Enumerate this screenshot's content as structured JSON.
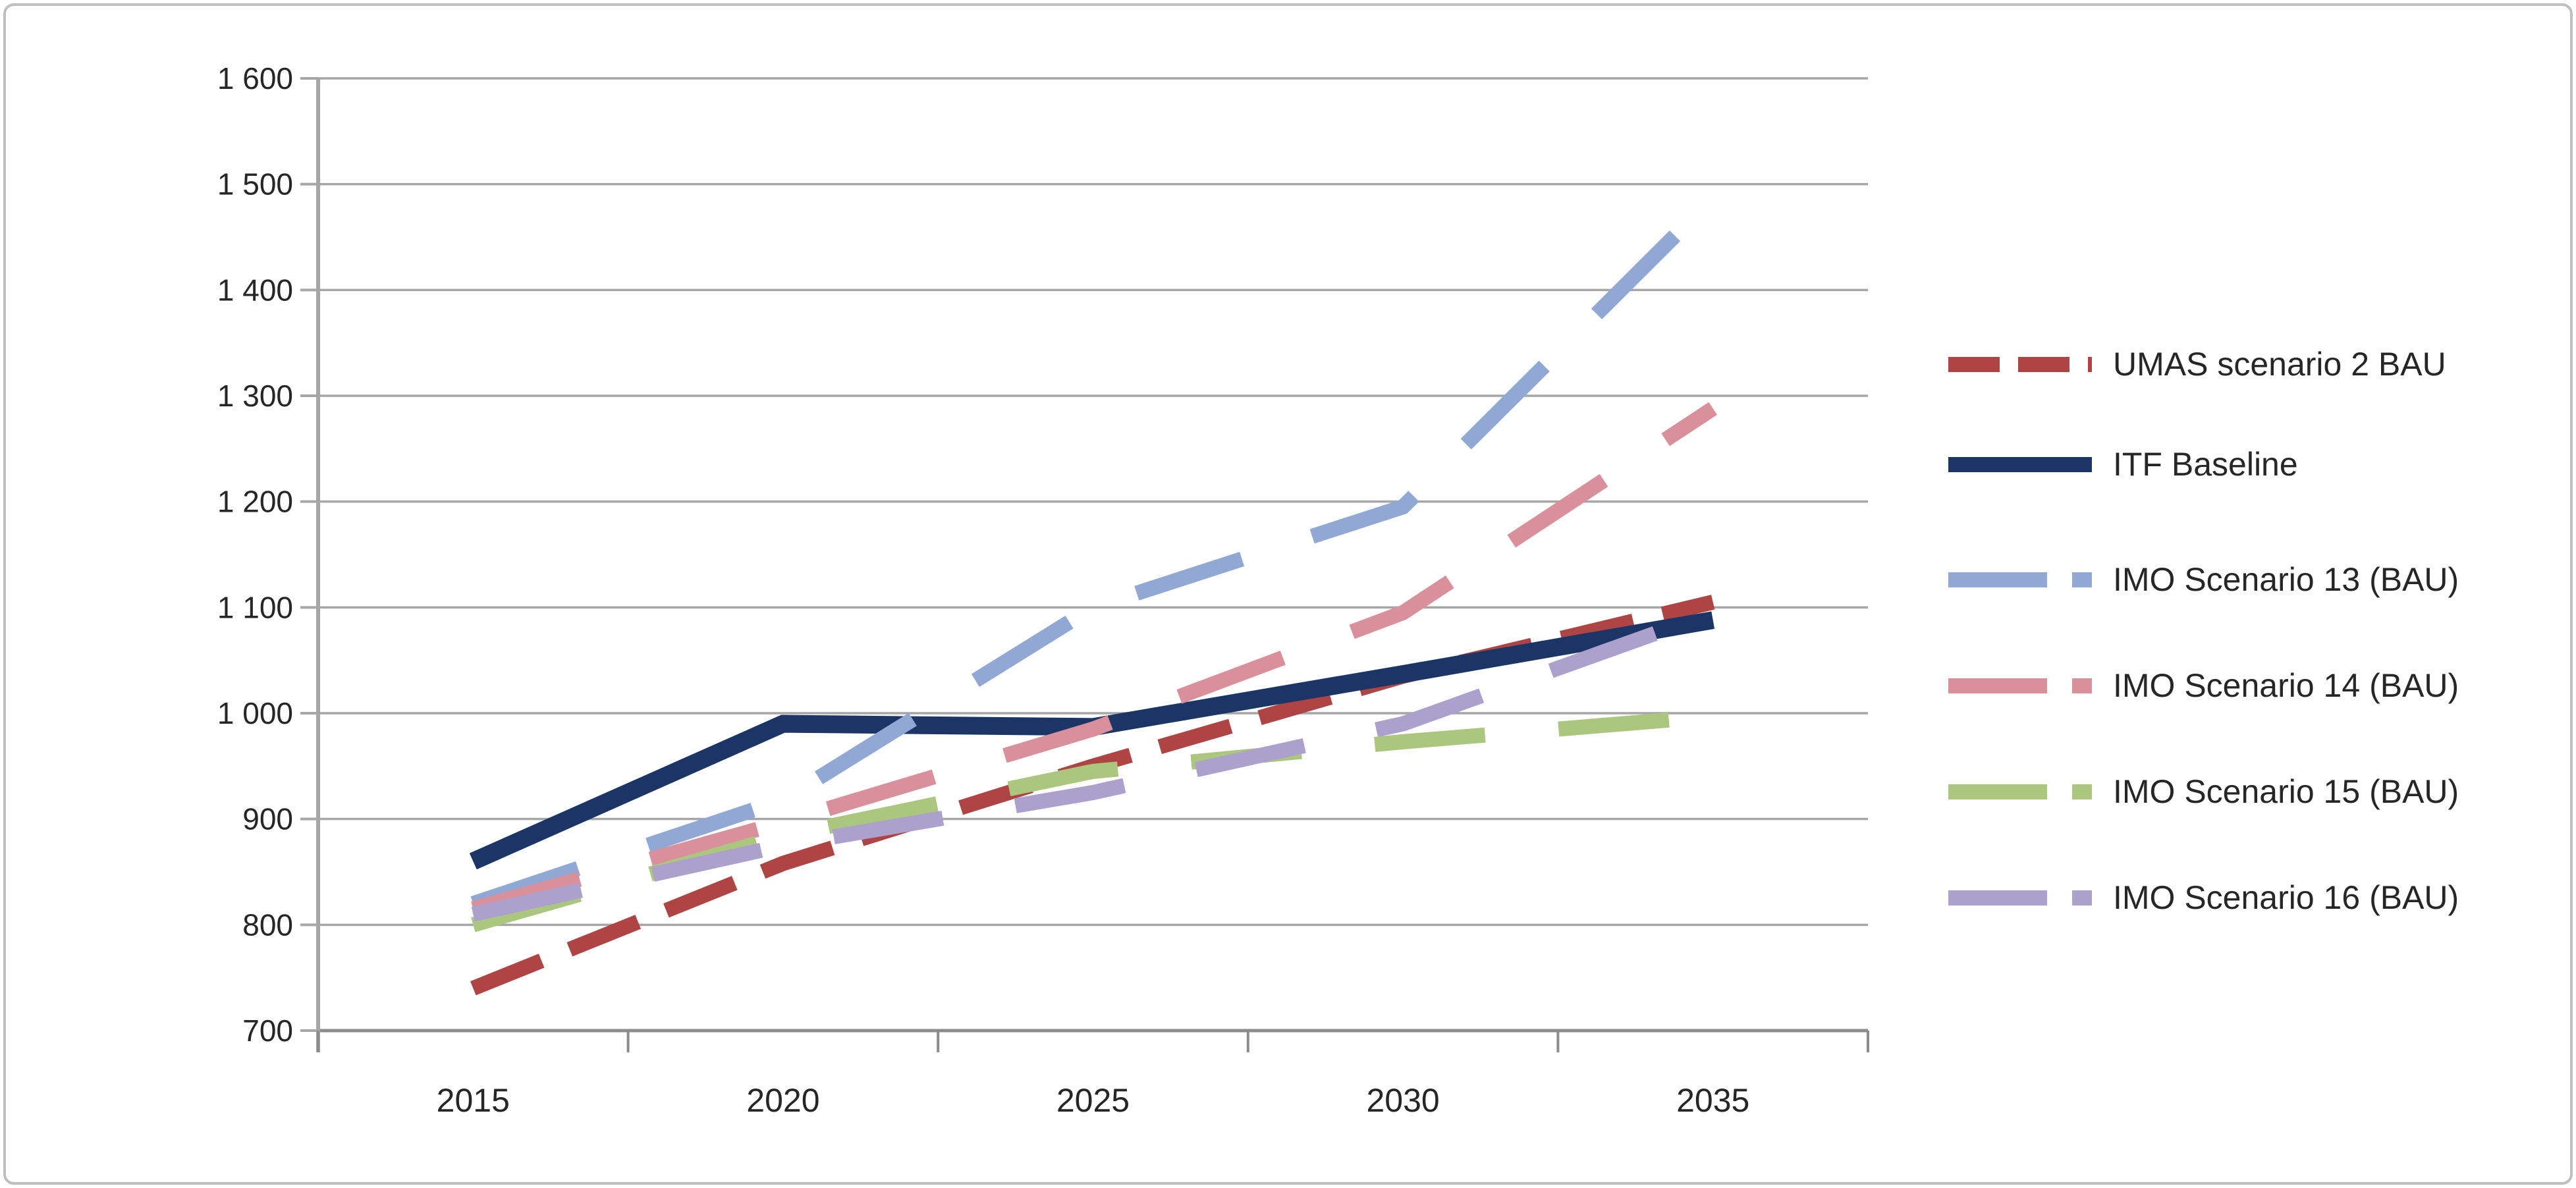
{
  "chart_data": {
    "type": "line",
    "title": "",
    "categories": [
      "2015",
      "2020",
      "2025",
      "2030",
      "2035"
    ],
    "xlabel": "",
    "ylabel": "",
    "ylim": [
      700,
      1600
    ],
    "y_step": 100,
    "y_tick_labels": [
      "1 600",
      "1 500",
      "1 400",
      "1 300",
      "1 200",
      "1 100",
      "1 000",
      "900",
      "800",
      "700"
    ],
    "grid": true,
    "legend_position": "right",
    "series": [
      {
        "name": "UMAS scenario 2 BAU",
        "color": "#AE4544",
        "dash_style": "long-dash",
        "values": [
          740,
          858,
          950,
          1035,
          1105
        ]
      },
      {
        "name": "ITF Baseline",
        "color": "#1B3566",
        "dash_style": "solid",
        "values": [
          860,
          990,
          987,
          1037,
          1088
        ]
      },
      {
        "name": "IMO Scenario 13 (BAU)",
        "color": "#90A8D3",
        "dash_style": "sparse-dash",
        "values": [
          820,
          918,
          1100,
          1195,
          1487
        ]
      },
      {
        "name": "IMO Scenario 14 (BAU)",
        "color": "#D9909A",
        "dash_style": "sparse-dash",
        "values": [
          815,
          897,
          985,
          1095,
          1288
        ]
      },
      {
        "name": "IMO Scenario 15 (BAU)",
        "color": "#ABC67D",
        "dash_style": "sparse-dash",
        "values": [
          800,
          884,
          945,
          973,
          997
        ]
      },
      {
        "name": "IMO Scenario 16 (BAU)",
        "color": "#ACA0CC",
        "dash_style": "sparse-dash",
        "values": [
          810,
          875,
          925,
          990,
          1095
        ]
      }
    ]
  },
  "colors": {
    "background": "#ffffff",
    "gridline": "#A6A6A6",
    "axis_line": "#8C8C8C",
    "tick": "#A6A6A6",
    "label_text": "#262626",
    "outer_border": "#BFBFBF"
  }
}
